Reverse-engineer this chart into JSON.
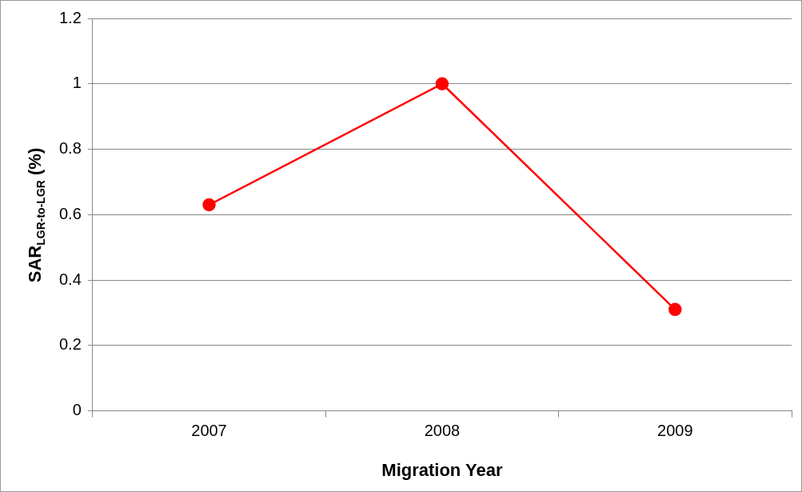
{
  "chart_data": {
    "type": "line",
    "xlabel": "Migration Year",
    "ylabel": "SAR$_{LGR-to-LGR}$ (%)",
    "categories": [
      "2007",
      "2008",
      "2009"
    ],
    "series": [
      {
        "color": "#ff0000",
        "values": [
          0.63,
          1.0,
          0.31
        ]
      }
    ],
    "ylim": [
      0,
      1.2
    ],
    "yticks": [
      0,
      0.2,
      0.4,
      0.6,
      0.8,
      1,
      1.2
    ],
    "grid": "y",
    "legend": false,
    "marker": "circle",
    "line_style": "solid"
  }
}
